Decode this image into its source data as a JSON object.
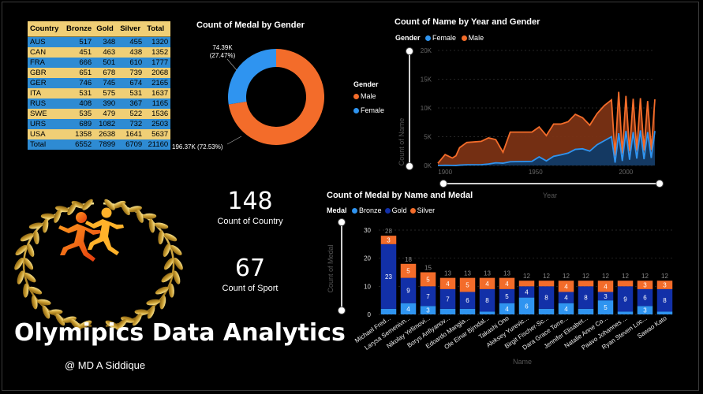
{
  "table": {
    "headers": [
      "Country",
      "Bronze",
      "Gold",
      "Silver",
      "Total"
    ],
    "rows": [
      [
        "AUS",
        "517",
        "348",
        "455",
        "1320"
      ],
      [
        "CAN",
        "451",
        "463",
        "438",
        "1352"
      ],
      [
        "FRA",
        "666",
        "501",
        "610",
        "1777"
      ],
      [
        "GBR",
        "651",
        "678",
        "739",
        "2068"
      ],
      [
        "GER",
        "746",
        "745",
        "674",
        "2165"
      ],
      [
        "ITA",
        "531",
        "575",
        "531",
        "1637"
      ],
      [
        "RUS",
        "408",
        "390",
        "367",
        "1165"
      ],
      [
        "SWE",
        "535",
        "479",
        "522",
        "1536"
      ],
      [
        "URS",
        "689",
        "1082",
        "732",
        "2503"
      ],
      [
        "USA",
        "1358",
        "2638",
        "1641",
        "5637"
      ],
      [
        "Total",
        "6552",
        "7899",
        "6709",
        "21160"
      ]
    ]
  },
  "donut": {
    "title": "Count of Medal by Gender",
    "legend_title": "Gender",
    "label_female_value": "74.39K",
    "label_female_pct": "(27.47%)",
    "label_male": "196.37K (72.53%)",
    "legend": [
      {
        "name": "Male",
        "color": "#f36c2a"
      },
      {
        "name": "Female",
        "color": "#2f94f0"
      }
    ]
  },
  "area": {
    "title": "Count of Name by Year and Gender",
    "legend_title": "Gender",
    "legend": [
      {
        "name": "Female",
        "color": "#2f94f0"
      },
      {
        "name": "Male",
        "color": "#f36c2a"
      }
    ],
    "y_ticks": [
      "20K",
      "15K",
      "10K",
      "5K",
      "0K"
    ],
    "x_ticks": [
      "1900",
      "1950",
      "2000"
    ],
    "xlabel": "Year",
    "ylabel": "Count of Name"
  },
  "kpis": [
    {
      "value": "148",
      "label": "Count of Country"
    },
    {
      "value": "67",
      "label": "Count of Sport"
    }
  ],
  "bars_title": "Count of Medal by Name and Medal",
  "bars_legend_title": "Medal",
  "main_title": "Olymipics Data Analytics",
  "author": "@ MD A Siddique",
  "colors": {
    "bronze": "#2f94f0",
    "gold": "#1230a8",
    "silver": "#f36c2a",
    "gold_table": "#f0cf76",
    "blue_table": "#2e8bd3"
  },
  "icons": [
    "laurel-wreath-icon",
    "runners-icon"
  ],
  "chart_data": [
    {
      "type": "pie",
      "title": "Count of Medal by Gender",
      "categories": [
        "Male",
        "Female"
      ],
      "values": [
        196370,
        74390
      ],
      "percentages": [
        72.53,
        27.47
      ]
    },
    {
      "type": "area",
      "title": "Count of Name by Year and Gender",
      "xlabel": "Year",
      "ylabel": "Count of Name",
      "xlim": [
        1896,
        2016
      ],
      "ylim": [
        0,
        20000
      ],
      "grid": true,
      "legend_position": "top-left",
      "x": [
        1896,
        1900,
        1904,
        1906,
        1908,
        1912,
        1920,
        1924,
        1928,
        1932,
        1936,
        1948,
        1952,
        1956,
        1960,
        1964,
        1968,
        1972,
        1976,
        1980,
        1984,
        1988,
        1992,
        1994,
        1996,
        1998,
        2000,
        2002,
        2004,
        2006,
        2008,
        2010,
        2012,
        2014,
        2016
      ],
      "series": [
        {
          "name": "Male",
          "values": [
            380,
            1900,
            1300,
            1700,
            3100,
            4000,
            4200,
            4800,
            4500,
            2300,
            5800,
            5800,
            6700,
            5200,
            7200,
            7200,
            7600,
            8900,
            8300,
            7000,
            9000,
            10400,
            11400,
            1700,
            12800,
            2100,
            12100,
            2500,
            11600,
            2600,
            11700,
            2600,
            11200,
            2700,
            11500
          ]
        },
        {
          "name": "Female",
          "values": [
            0,
            30,
            20,
            10,
            60,
            120,
            140,
            260,
            460,
            400,
            650,
            720,
            1500,
            800,
            1600,
            1850,
            2150,
            2800,
            2900,
            2500,
            3600,
            4300,
            5000,
            500,
            5600,
            780,
            6000,
            1000,
            5800,
            1200,
            6100,
            1100,
            5800,
            1300,
            6000
          ]
        }
      ]
    },
    {
      "type": "bar",
      "title": "Count of Medal by Name and Medal",
      "xlabel": "Name",
      "ylabel": "Count of Medal",
      "ylim": [
        0,
        30
      ],
      "stacked": true,
      "categories": [
        "Michael Fred...",
        "Larysa Semenivn...",
        "Nikolay Yefimovi...",
        "Borys Anfiyanov...",
        "Edoardo Mangia...",
        "Ole Einar Bjrndal...",
        "Takashi Ono",
        "Aleksey Yurevic...",
        "Birgit Fischer-Sc...",
        "Dara Grace Torre...",
        "Jennifer Elisabet...",
        "Natalie Anne Co...",
        "Paavo Johannes ...",
        "Ryan Steven Loc...",
        "Sawao Kato"
      ],
      "totals": [
        28,
        18,
        15,
        13,
        13,
        13,
        13,
        12,
        12,
        12,
        12,
        12,
        12,
        12,
        12
      ],
      "series": [
        {
          "name": "Bronze",
          "values": [
            2,
            4,
            3,
            2,
            2,
            1,
            4,
            6,
            2,
            4,
            2,
            5,
            1,
            3,
            1
          ]
        },
        {
          "name": "Gold",
          "values": [
            23,
            9,
            7,
            7,
            6,
            8,
            5,
            4,
            8,
            4,
            8,
            3,
            9,
            6,
            8
          ]
        },
        {
          "name": "Silver",
          "values": [
            3,
            5,
            5,
            4,
            5,
            4,
            4,
            2,
            2,
            4,
            2,
            4,
            2,
            3,
            3
          ]
        }
      ]
    }
  ]
}
